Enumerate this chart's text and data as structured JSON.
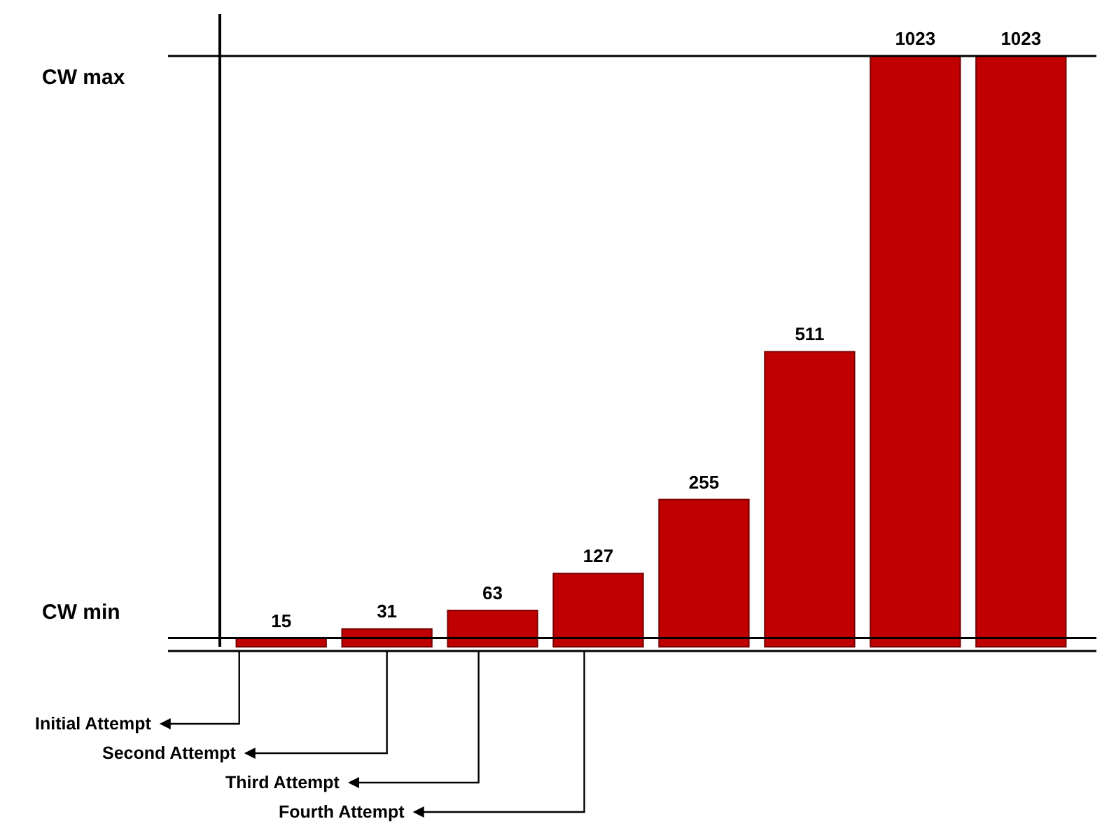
{
  "chart_data": {
    "type": "bar",
    "categories": [
      null,
      null,
      null,
      null,
      null,
      null,
      null,
      null
    ],
    "values": [
      15,
      31,
      63,
      127,
      255,
      511,
      1023,
      1023
    ],
    "color": "#c00000",
    "data_labels": true,
    "tick_labels": false,
    "grid": false,
    "ref_lines": [
      {
        "axis": "y",
        "value": 1023,
        "label": "CW  max"
      },
      {
        "axis": "y",
        "value": 15,
        "label": "CW  min"
      }
    ],
    "annotations": [
      "Initial Attempt",
      "Second Attempt",
      "Third Attempt",
      "Fourth Attempt"
    ]
  }
}
